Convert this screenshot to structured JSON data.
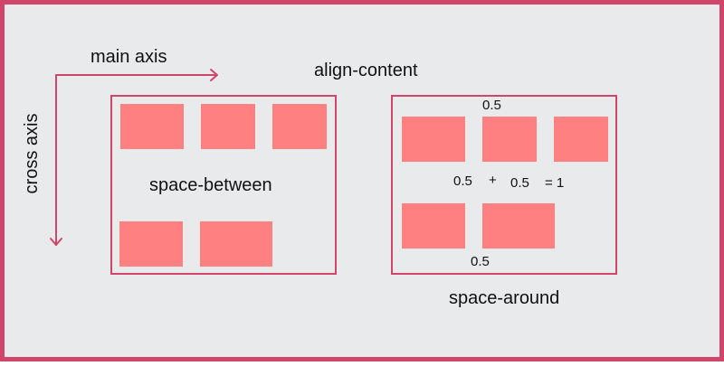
{
  "axes": {
    "main_axis_label": "main axis",
    "cross_axis_label": "cross axis"
  },
  "title": "align-content",
  "space_between": {
    "caption": "space-between"
  },
  "space_around": {
    "caption": "space-around",
    "top_value": "0.5",
    "middle_left_value": "0.5",
    "plus_sign": "+",
    "middle_right_value": "0.5",
    "equals_value": "= 1",
    "bottom_value": "0.5"
  },
  "colors": {
    "accent": "#d0466b",
    "item_fill": "#ff8080",
    "background": "#e9eaec"
  }
}
